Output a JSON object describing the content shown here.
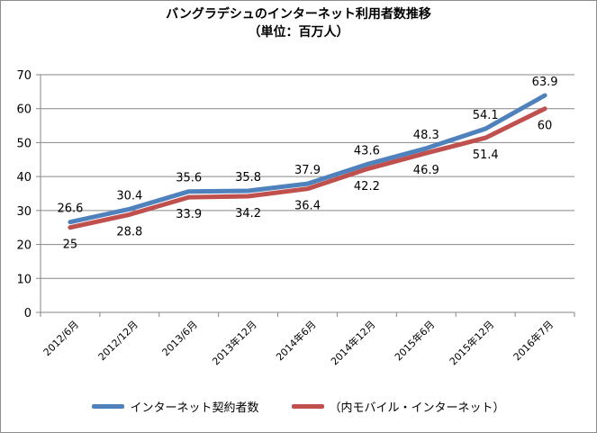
{
  "chart_data": {
    "type": "line",
    "title": "バングラデシュのインターネット利用者数推移",
    "subtitle": "（単位：百万人）",
    "categories": [
      "2012/6月",
      "2012/12月",
      "2013/6月",
      "2013年12月",
      "2014年6月",
      "2014年12月",
      "2015年6月",
      "2015年12月",
      "2016年7月"
    ],
    "series": [
      {
        "name": "インターネット契約者数",
        "color": "#4f81bd",
        "values": [
          26.6,
          30.4,
          35.6,
          35.8,
          37.9,
          43.6,
          48.3,
          54.1,
          63.9
        ],
        "label_position": "above"
      },
      {
        "name": "（内モバイル・インターネット）",
        "color": "#c0504d",
        "values": [
          25,
          28.8,
          33.9,
          34.2,
          36.4,
          42.2,
          46.9,
          51.4,
          60
        ],
        "label_position": "below"
      }
    ],
    "ylim": [
      0,
      70
    ],
    "yticks": [
      0,
      10,
      20,
      30,
      40,
      50,
      60,
      70
    ],
    "grid": true,
    "legend": "bottom"
  }
}
